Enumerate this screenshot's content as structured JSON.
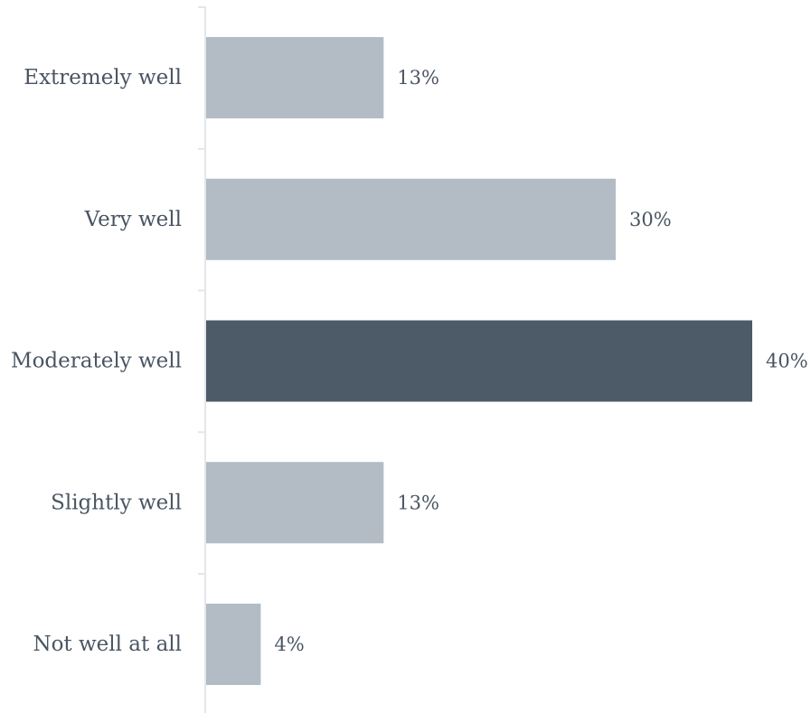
{
  "chart_data": {
    "type": "bar",
    "orientation": "horizontal",
    "categories": [
      "Extremely well",
      "Very well",
      "Moderately well",
      "Slightly well",
      "Not well at all"
    ],
    "values": [
      13,
      30,
      40,
      13,
      4
    ],
    "value_labels": [
      "13%",
      "30%",
      "40%",
      "13%",
      "4%"
    ],
    "unit": "%",
    "xlim": [
      0,
      40
    ],
    "grid": false,
    "legend": "none",
    "colors": {
      "default_bar": "#b3bcc4",
      "highlight_bar": "#4d5a67",
      "text": "#4a5563",
      "axis": "#e3e6ea"
    },
    "highlight_index": 2
  }
}
